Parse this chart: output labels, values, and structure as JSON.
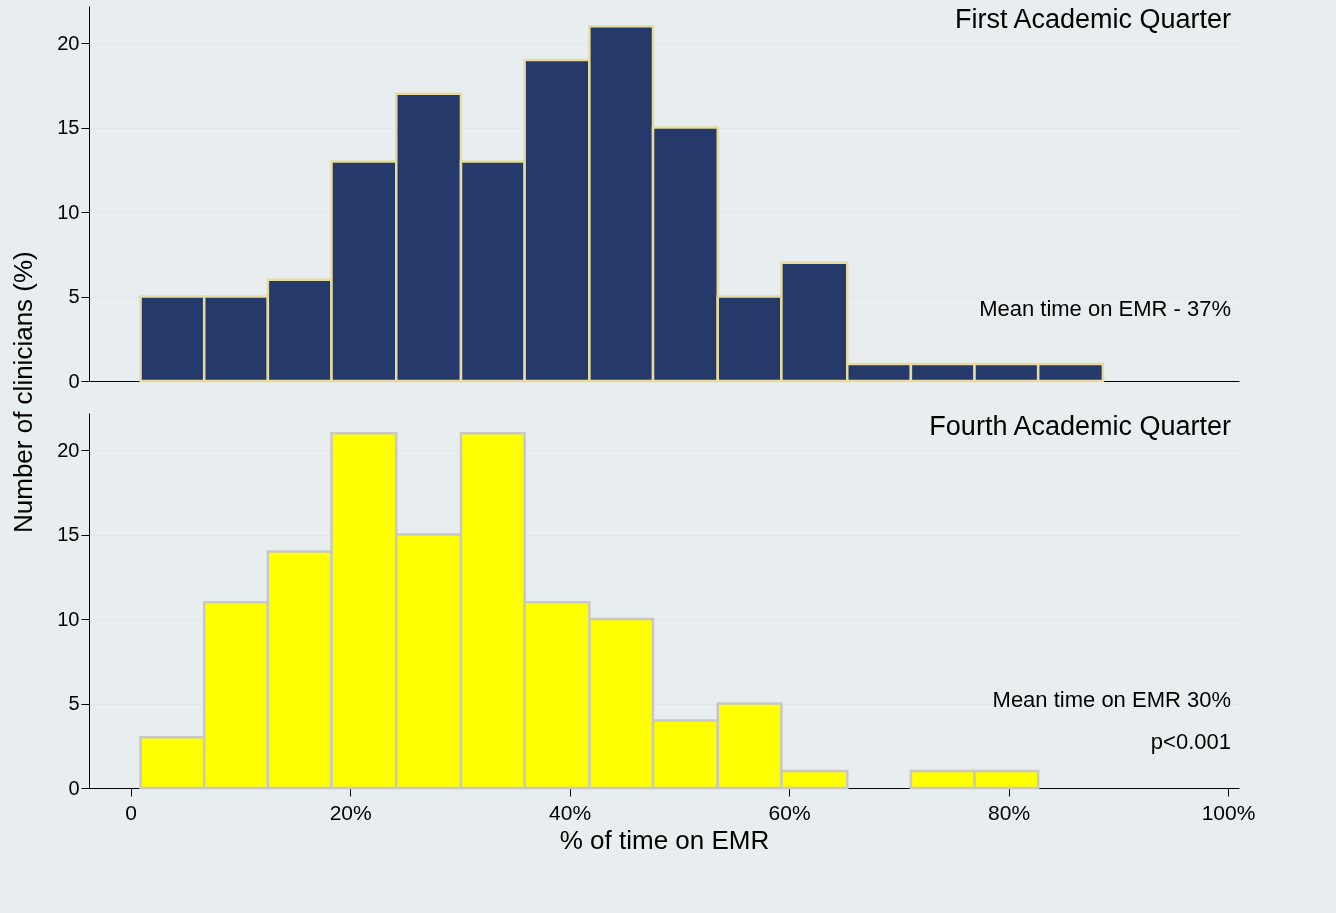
{
  "chart_data": [
    {
      "type": "histogram",
      "title": "First Academic Quarter",
      "ylabel": "Number of clinicians (%)",
      "annotations": [
        "Mean time on EMR - 37%"
      ],
      "bins": [
        0.9,
        6.7,
        12.5,
        18.3,
        24.2,
        30.1,
        35.9,
        41.8,
        47.6,
        53.5,
        59.3,
        65.3,
        71.1,
        76.9,
        82.7,
        88.6
      ],
      "values": [
        5,
        5,
        6,
        13,
        17,
        13,
        19,
        21,
        15,
        5,
        7,
        1,
        1,
        1,
        1
      ],
      "color": "#253a6a",
      "xlim": [
        -3.8,
        101
      ],
      "ylim": [
        0,
        22.2
      ],
      "yticks": [
        0,
        5,
        10,
        15,
        20
      ],
      "grid": "y",
      "tick_labels": "y"
    },
    {
      "type": "histogram",
      "title": "Fourth Academic Quarter",
      "xlabel": "% of time on EMR",
      "annotations": [
        "Mean time on EMR 30%",
        "p<0.001"
      ],
      "bins": [
        0.9,
        6.7,
        12.5,
        18.3,
        24.2,
        30.1,
        35.9,
        41.8,
        47.6,
        53.5,
        59.3,
        65.3,
        71.1,
        76.9,
        82.7
      ],
      "values": [
        3,
        11,
        14,
        21,
        15,
        21,
        11,
        10,
        4,
        5,
        1,
        0,
        1,
        1
      ],
      "color": "#ffff00",
      "xlim": [
        -3.8,
        101
      ],
      "xticks": [
        0,
        {
          "value": 20,
          "label": "20%"
        },
        {
          "value": 40,
          "label": "40%"
        },
        {
          "value": 60,
          "label": "60%"
        },
        {
          "value": 80,
          "label": "80%"
        },
        {
          "value": 100,
          "label": "100%"
        }
      ],
      "ylim": [
        0,
        22.2
      ],
      "yticks": [
        0,
        5,
        10,
        15,
        20
      ],
      "grid": "y"
    }
  ]
}
